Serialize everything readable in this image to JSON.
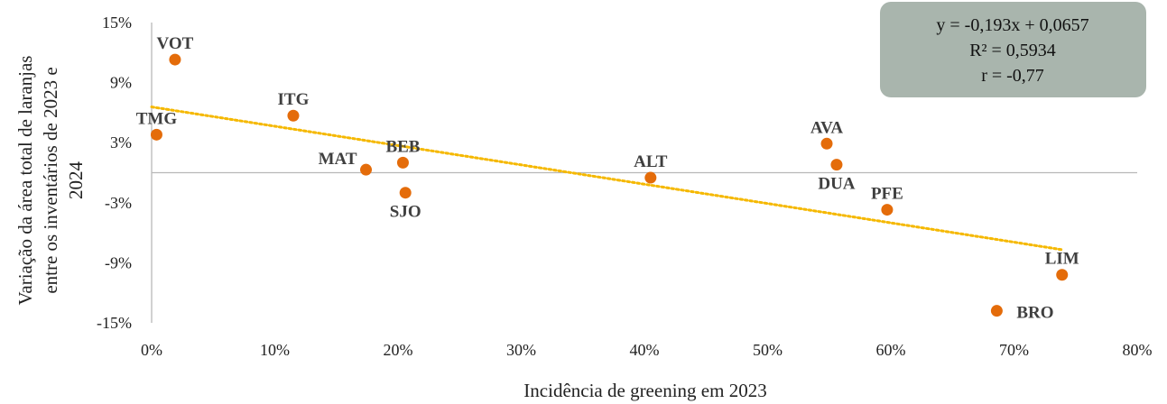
{
  "chart_data": {
    "type": "scatter",
    "xlabel": "Incidência de greening em 2023",
    "ylabel_lines": [
      "Variação da área total de laranjas",
      "entre os inventários de 2023 e",
      "2024"
    ],
    "x_ticks": [
      "0%",
      "10%",
      "20%",
      "30%",
      "40%",
      "50%",
      "60%",
      "70%",
      "80%"
    ],
    "y_ticks": [
      "15%",
      "9%",
      "3%",
      "-3%",
      "-9%",
      "-15%"
    ],
    "xlim": [
      0,
      0.8
    ],
    "ylim": [
      -0.15,
      0.15
    ],
    "grid": false,
    "point_color": "#E46C0A",
    "trend_color": "#F5B800",
    "points": [
      {
        "label": "VOT",
        "x": 0.019,
        "y": 0.113,
        "label_pos": "above"
      },
      {
        "label": "TMG",
        "x": 0.004,
        "y": 0.038,
        "label_pos": "above"
      },
      {
        "label": "ITG",
        "x": 0.115,
        "y": 0.057,
        "label_pos": "above"
      },
      {
        "label": "MAT",
        "x": 0.174,
        "y": 0.003,
        "label_pos": "left"
      },
      {
        "label": "BEB",
        "x": 0.204,
        "y": 0.01,
        "label_pos": "above"
      },
      {
        "label": "SJO",
        "x": 0.206,
        "y": -0.02,
        "label_pos": "below"
      },
      {
        "label": "ALT",
        "x": 0.405,
        "y": -0.005,
        "label_pos": "above"
      },
      {
        "label": "AVA",
        "x": 0.548,
        "y": 0.029,
        "label_pos": "above"
      },
      {
        "label": "DUA",
        "x": 0.556,
        "y": 0.008,
        "label_pos": "below"
      },
      {
        "label": "PFE",
        "x": 0.597,
        "y": -0.037,
        "label_pos": "above"
      },
      {
        "label": "LIM",
        "x": 0.739,
        "y": -0.102,
        "label_pos": "above"
      },
      {
        "label": "BRO",
        "x": 0.686,
        "y": -0.138,
        "label_pos": "right"
      }
    ],
    "trendline": {
      "slope": -0.193,
      "intercept": 0.0657,
      "x_range": [
        0,
        0.74
      ]
    },
    "equation_box": {
      "lines": [
        "y = -0,193x + 0,0657",
        "R² = 0,5934",
        "r = -0,77"
      ],
      "background": "#A9B5AD"
    }
  }
}
